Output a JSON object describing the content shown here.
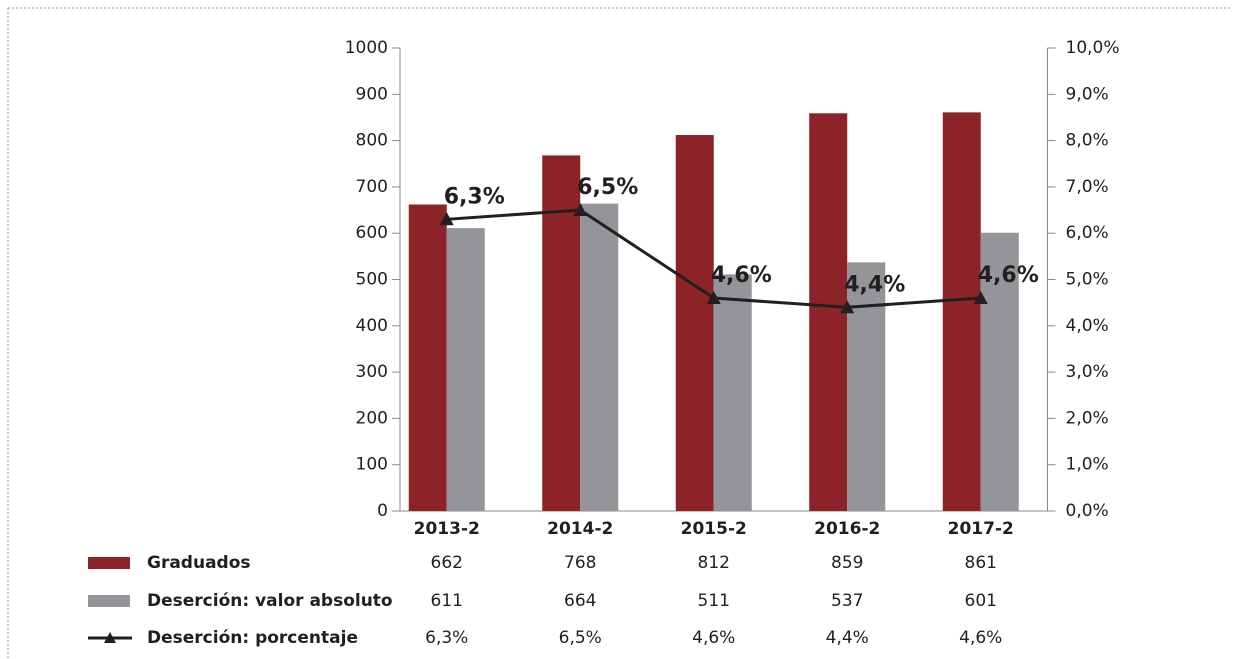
{
  "chart_data": {
    "type": "bar-line",
    "categories": [
      "2013-2",
      "2014-2",
      "2015-2",
      "2016-2",
      "2017-2"
    ],
    "series": [
      {
        "name": "Graduados",
        "color": "#8b2328",
        "type": "bar",
        "values": [
          662,
          768,
          812,
          859,
          861
        ]
      },
      {
        "name": "Deserción: valor absoluto",
        "color": "#939598",
        "type": "bar",
        "values": [
          611,
          664,
          511,
          537,
          601
        ]
      },
      {
        "name": "Deserción: porcentaje",
        "color": "#231f20",
        "type": "line",
        "axis": "y2",
        "values": [
          6.3,
          6.5,
          4.6,
          4.4,
          4.6
        ],
        "value_labels": [
          "6,3%",
          "6,5%",
          "4,6%",
          "4,4%",
          "4,6%"
        ]
      }
    ],
    "ylim": [
      0,
      1000
    ],
    "yticks": [
      0,
      100,
      200,
      300,
      400,
      500,
      600,
      700,
      800,
      900,
      1000
    ],
    "y2lim": [
      0,
      10
    ],
    "y2ticks": [
      {
        "value": 0,
        "label": "0,0%"
      },
      {
        "value": 1,
        "label": "1,0%"
      },
      {
        "value": 2,
        "label": "2,0%"
      },
      {
        "value": 3,
        "label": "3,0%"
      },
      {
        "value": 4,
        "label": "4,0%"
      },
      {
        "value": 5,
        "label": "5,0%"
      },
      {
        "value": 6,
        "label": "6,0%"
      },
      {
        "value": 7,
        "label": "7,0%"
      },
      {
        "value": 8,
        "label": "8,0%"
      },
      {
        "value": 9,
        "label": "9,0%"
      },
      {
        "value": 10,
        "label": "10,0%"
      }
    ],
    "grid": false,
    "legend": "bottom"
  }
}
